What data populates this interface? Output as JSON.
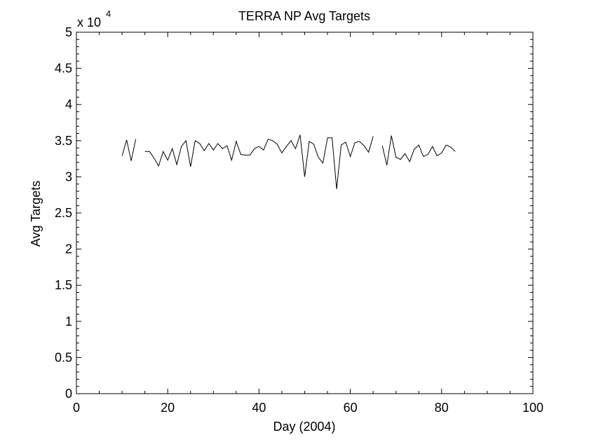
{
  "chart_data": {
    "type": "line",
    "title": "TERRA NP Avg Targets",
    "xlabel": "Day (2004)",
    "ylabel": "Avg Targets",
    "y_multiplier_label": "x 10",
    "y_multiplier_exponent": "4",
    "xlim": [
      0,
      100
    ],
    "ylim": [
      0,
      5
    ],
    "x_ticks": [
      "0",
      "20",
      "40",
      "60",
      "80",
      "100"
    ],
    "y_ticks": [
      "0",
      "0.5",
      "1",
      "1.5",
      "2",
      "2.5",
      "3",
      "3.5",
      "4",
      "4.5",
      "5"
    ],
    "grid": false,
    "line_color": "#000000",
    "series": [
      {
        "segments": [
          [
            [
              10,
              3.29
            ],
            [
              11,
              3.51
            ],
            [
              12,
              3.22
            ],
            [
              13,
              3.52
            ]
          ],
          [
            [
              15,
              3.35
            ],
            [
              16,
              3.35
            ],
            [
              17,
              3.26
            ],
            [
              18,
              3.15
            ],
            [
              19,
              3.35
            ],
            [
              20,
              3.23
            ],
            [
              21,
              3.39
            ],
            [
              22,
              3.17
            ],
            [
              23,
              3.42
            ],
            [
              24,
              3.5
            ],
            [
              25,
              3.14
            ],
            [
              26,
              3.5
            ],
            [
              27,
              3.46
            ],
            [
              28,
              3.36
            ],
            [
              29,
              3.46
            ],
            [
              30,
              3.37
            ],
            [
              31,
              3.46
            ],
            [
              32,
              3.39
            ],
            [
              33,
              3.43
            ],
            [
              34,
              3.23
            ],
            [
              35,
              3.49
            ],
            [
              36,
              3.31
            ],
            [
              37,
              3.3
            ],
            [
              38,
              3.3
            ],
            [
              39,
              3.39
            ],
            [
              40,
              3.42
            ],
            [
              41,
              3.37
            ],
            [
              42,
              3.52
            ],
            [
              43,
              3.5
            ],
            [
              44,
              3.45
            ],
            [
              45,
              3.33
            ],
            [
              46,
              3.42
            ],
            [
              47,
              3.5
            ],
            [
              48,
              3.39
            ],
            [
              49,
              3.58
            ],
            [
              50,
              3.0
            ],
            [
              51,
              3.49
            ],
            [
              52,
              3.45
            ],
            [
              53,
              3.27
            ],
            [
              54,
              3.19
            ],
            [
              55,
              3.54
            ],
            [
              56,
              3.54
            ],
            [
              57,
              2.83
            ],
            [
              58,
              3.44
            ],
            [
              59,
              3.48
            ],
            [
              60,
              3.28
            ],
            [
              61,
              3.47
            ],
            [
              62,
              3.49
            ],
            [
              63,
              3.43
            ],
            [
              64,
              3.34
            ],
            [
              65,
              3.56
            ]
          ],
          [
            [
              67,
              3.43
            ],
            [
              68,
              3.16
            ],
            [
              69,
              3.57
            ],
            [
              70,
              3.27
            ],
            [
              71,
              3.24
            ],
            [
              72,
              3.32
            ],
            [
              73,
              3.21
            ],
            [
              74,
              3.38
            ],
            [
              75,
              3.44
            ],
            [
              76,
              3.28
            ],
            [
              77,
              3.31
            ],
            [
              78,
              3.42
            ],
            [
              79,
              3.29
            ],
            [
              80,
              3.33
            ],
            [
              81,
              3.44
            ],
            [
              82,
              3.41
            ],
            [
              83,
              3.35
            ]
          ]
        ]
      }
    ]
  }
}
